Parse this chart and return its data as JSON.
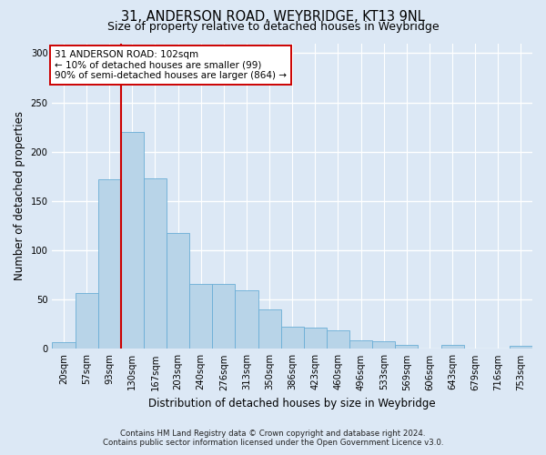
{
  "title_line1": "31, ANDERSON ROAD, WEYBRIDGE, KT13 9NL",
  "title_line2": "Size of property relative to detached houses in Weybridge",
  "xlabel": "Distribution of detached houses by size in Weybridge",
  "ylabel": "Number of detached properties",
  "bin_labels": [
    "20sqm",
    "57sqm",
    "93sqm",
    "130sqm",
    "167sqm",
    "203sqm",
    "240sqm",
    "276sqm",
    "313sqm",
    "350sqm",
    "386sqm",
    "423sqm",
    "460sqm",
    "496sqm",
    "533sqm",
    "569sqm",
    "606sqm",
    "643sqm",
    "679sqm",
    "716sqm",
    "753sqm"
  ],
  "bar_values": [
    7,
    57,
    172,
    220,
    173,
    118,
    66,
    66,
    59,
    40,
    23,
    22,
    19,
    9,
    8,
    4,
    0,
    4,
    0,
    0,
    3
  ],
  "bar_color": "#b8d4e8",
  "bar_edge_color": "#6aaed6",
  "marker_bin_index": 2,
  "marker_label_line1": "31 ANDERSON ROAD: 102sqm",
  "marker_label_line2": "← 10% of detached houses are smaller (99)",
  "marker_label_line3": "90% of semi-detached houses are larger (864) →",
  "marker_color": "#cc0000",
  "annotation_box_facecolor": "#ffffff",
  "annotation_box_edgecolor": "#cc0000",
  "background_color": "#dce8f5",
  "grid_color": "#ffffff",
  "ylim": [
    0,
    310
  ],
  "yticks": [
    0,
    50,
    100,
    150,
    200,
    250,
    300
  ],
  "footer_line1": "Contains HM Land Registry data © Crown copyright and database right 2024.",
  "footer_line2": "Contains public sector information licensed under the Open Government Licence v3.0."
}
